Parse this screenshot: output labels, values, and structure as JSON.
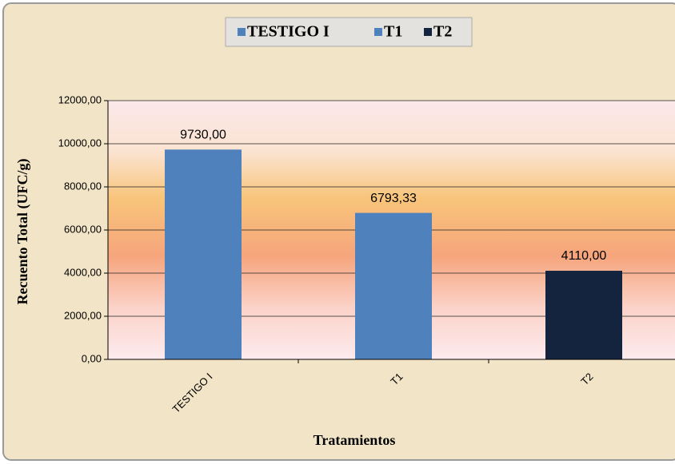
{
  "chart_data": {
    "type": "bar",
    "x_label": "Tratamientos",
    "y_label": "Recuento Total (UFC/g)",
    "categories": [
      "TESTIGO I",
      "T1",
      "T2"
    ],
    "series": [
      {
        "name": "TESTIGO I",
        "color": "#4f81bd",
        "values": [
          9730,
          null,
          null
        ],
        "value_labels": [
          "9730,00",
          null,
          null
        ]
      },
      {
        "name": "T1",
        "color": "#4f81bd",
        "values": [
          null,
          6793.33,
          null
        ],
        "value_labels": [
          null,
          "6793,33",
          null
        ]
      },
      {
        "name": "T2",
        "color": "#14243e",
        "values": [
          null,
          null,
          4110
        ],
        "value_labels": [
          null,
          null,
          "4110,00"
        ]
      }
    ],
    "ylim": [
      0,
      12000
    ],
    "yticks": [
      {
        "value": 0,
        "label": "0,00"
      },
      {
        "value": 2000,
        "label": "2000,00"
      },
      {
        "value": 4000,
        "label": "4000,00"
      },
      {
        "value": 6000,
        "label": "6000,00"
      },
      {
        "value": 8000,
        "label": "8000,00"
      },
      {
        "value": 10000,
        "label": "10000,00"
      },
      {
        "value": 12000,
        "label": "12000,00"
      }
    ],
    "grid": true,
    "legend": "top"
  }
}
